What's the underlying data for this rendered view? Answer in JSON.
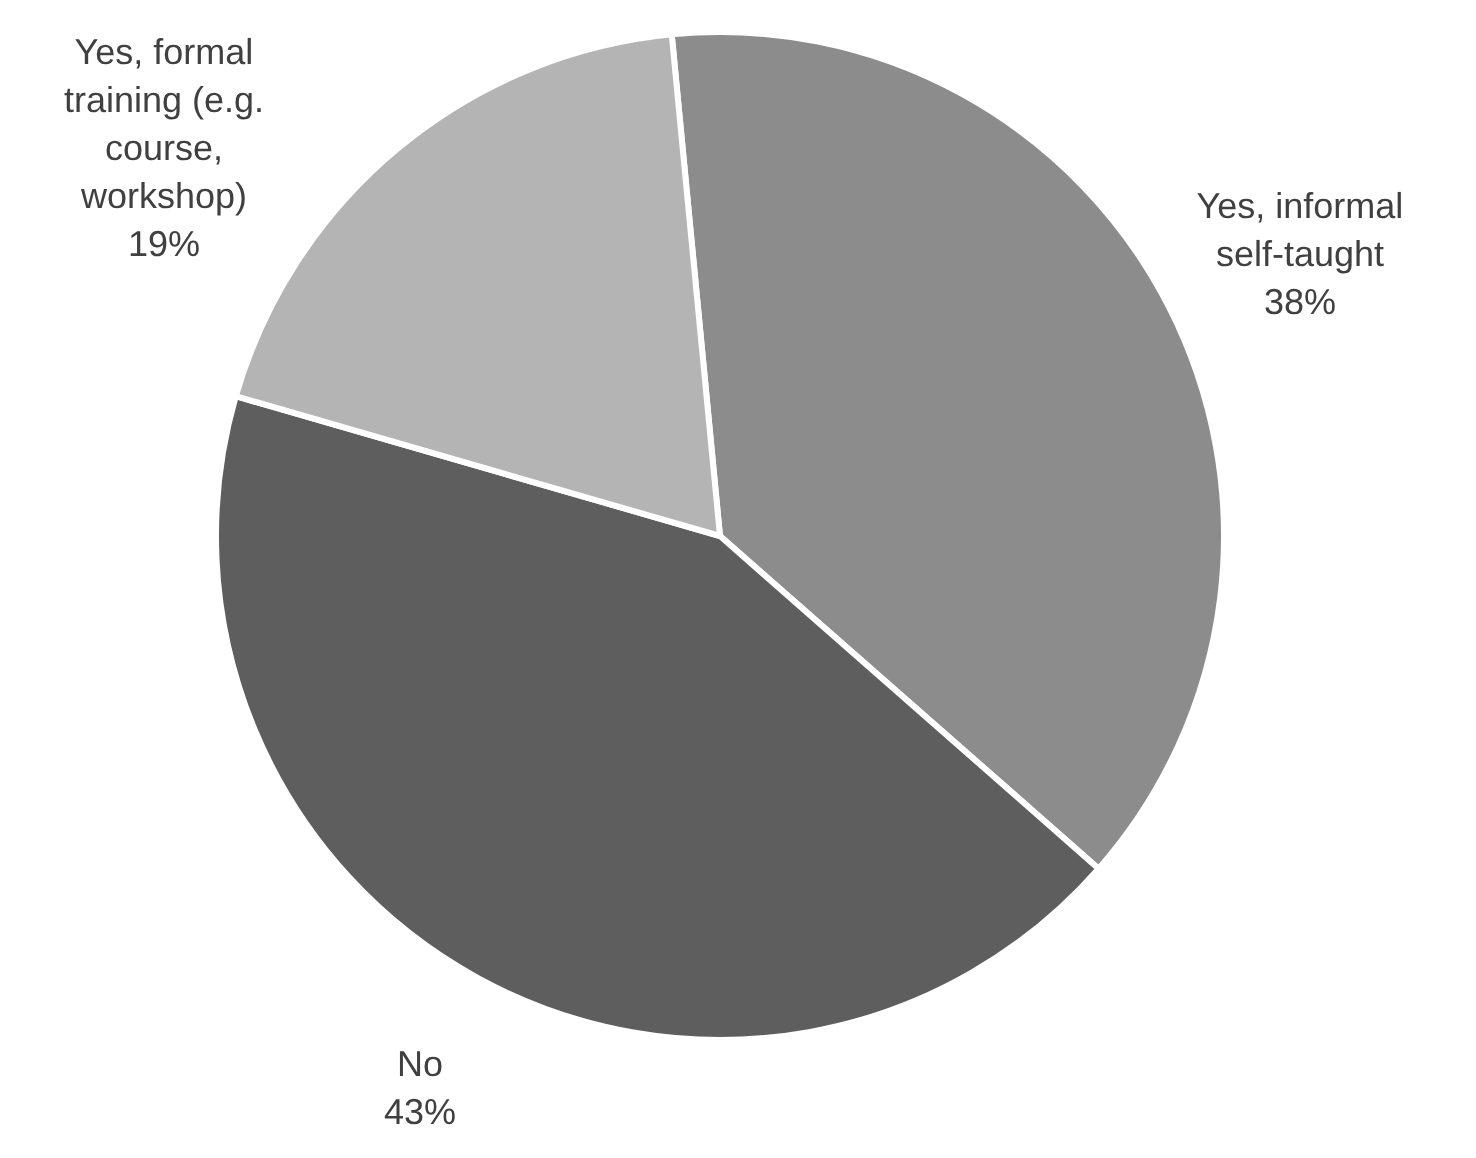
{
  "chart_data": {
    "type": "pie",
    "categories": [
      "Yes, informal self-taught",
      "No",
      "Yes, formal training (e.g. course, workshop)"
    ],
    "values": [
      38,
      43,
      19
    ],
    "colors": [
      "#8c8c8c",
      "#5e5e5e",
      "#b4b4b4"
    ],
    "value_labels": [
      "38%",
      "43%",
      "19%"
    ]
  }
}
